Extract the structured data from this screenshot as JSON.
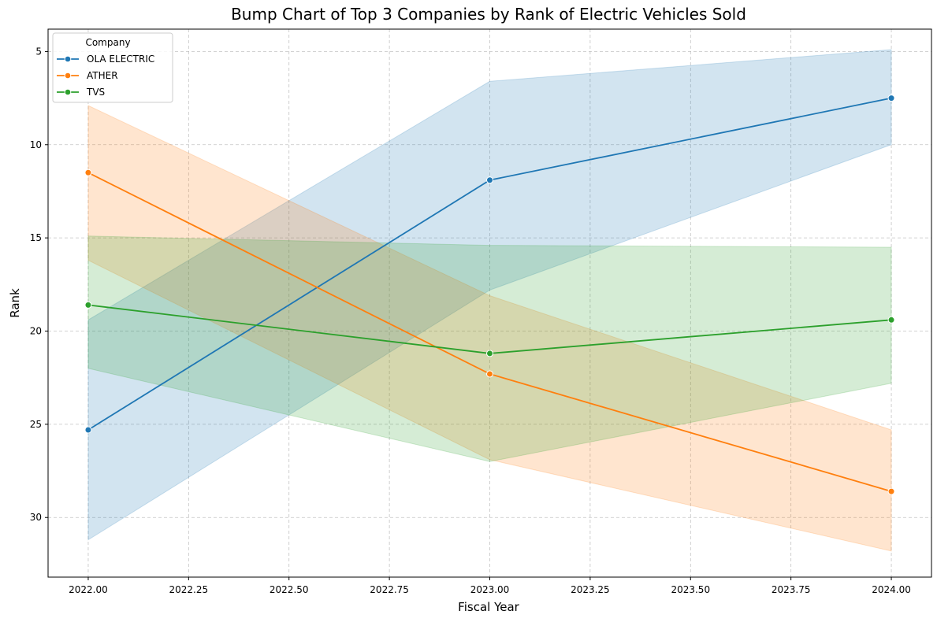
{
  "chart_data": {
    "type": "line",
    "title": "Bump Chart of Top 3 Companies by Rank of Electric Vehicles Sold",
    "xlabel": "Fiscal Year",
    "ylabel": "Rank",
    "xlim": [
      2021.9,
      2024.1
    ],
    "ylim": [
      33.2,
      3.8
    ],
    "y_inverted": true,
    "x_ticks": [
      2022.0,
      2022.25,
      2022.5,
      2022.75,
      2023.0,
      2023.25,
      2023.5,
      2023.75,
      2024.0
    ],
    "x_tick_labels": [
      "2022.00",
      "2022.25",
      "2022.50",
      "2022.75",
      "2023.00",
      "2023.25",
      "2023.50",
      "2023.75",
      "2024.00"
    ],
    "y_ticks": [
      5,
      10,
      15,
      20,
      25,
      30
    ],
    "y_tick_labels": [
      "5",
      "10",
      "15",
      "20",
      "25",
      "30"
    ],
    "grid": true,
    "legend": {
      "title": "Company",
      "position": "upper-left"
    },
    "x": [
      2022,
      2023,
      2024
    ],
    "series": [
      {
        "name": "OLA ELECTRIC",
        "color": "#1f77b4",
        "values": [
          25.3,
          11.9,
          7.5
        ],
        "ci_low": [
          19.4,
          6.6,
          4.9
        ],
        "ci_high": [
          31.2,
          17.8,
          10.0
        ]
      },
      {
        "name": "ATHER",
        "color": "#ff7f0e",
        "values": [
          11.5,
          22.3,
          28.6
        ],
        "ci_low": [
          7.9,
          18.1,
          25.3
        ],
        "ci_high": [
          16.2,
          26.9,
          31.8
        ]
      },
      {
        "name": "TVS",
        "color": "#2ca02c",
        "values": [
          18.6,
          21.2,
          19.4
        ],
        "ci_low": [
          14.9,
          15.4,
          15.5
        ],
        "ci_high": [
          22.0,
          27.0,
          22.8
        ]
      }
    ]
  }
}
